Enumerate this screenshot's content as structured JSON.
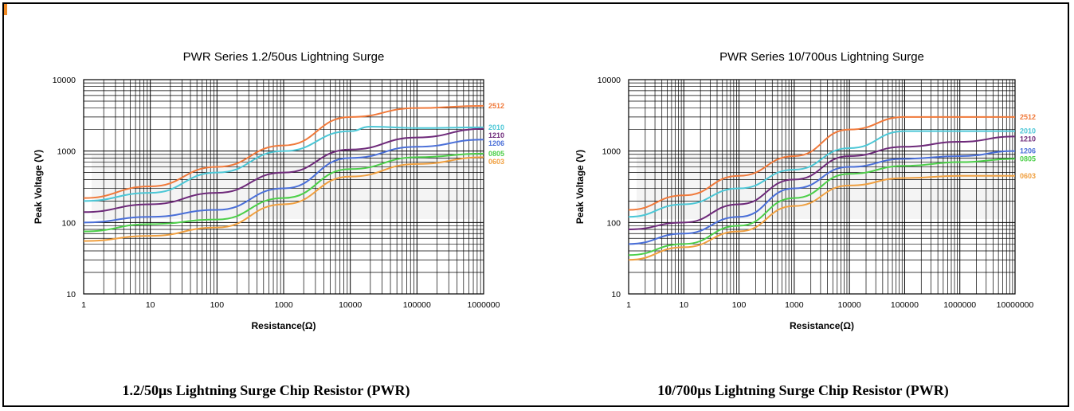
{
  "chart_data": [
    {
      "type": "line",
      "title": "PWR Series 1.2/50us Lightning Surge",
      "xlabel": "Resistance(Ω)",
      "ylabel": "Peak Voltage (V)",
      "xscale": "log",
      "yscale": "log",
      "xlim": [
        1,
        1000000
      ],
      "ylim": [
        10,
        10000
      ],
      "xticks": [
        "1",
        "10",
        "100",
        "1000",
        "10000",
        "100000",
        "1000000"
      ],
      "yticks": [
        "10",
        "100",
        "1000",
        "10000"
      ],
      "grid": true,
      "legend": "series labels at right end of lines",
      "series": [
        {
          "name": "2512",
          "color": "#f0793a",
          "points": [
            [
              1,
              220
            ],
            [
              10,
              320
            ],
            [
              100,
              600
            ],
            [
              1000,
              1200
            ],
            [
              10000,
              3000
            ],
            [
              100000,
              4000
            ],
            [
              1000000,
              4300
            ]
          ]
        },
        {
          "name": "2010",
          "color": "#4cc7d6",
          "points": [
            [
              1,
              200
            ],
            [
              10,
              260
            ],
            [
              100,
              500
            ],
            [
              1000,
              1000
            ],
            [
              10000,
              1900
            ],
            [
              20000,
              2200
            ],
            [
              100000,
              2100
            ],
            [
              1000000,
              2150
            ]
          ]
        },
        {
          "name": "1210",
          "color": "#6e2a7a",
          "points": [
            [
              1,
              140
            ],
            [
              10,
              180
            ],
            [
              100,
              260
            ],
            [
              1000,
              500
            ],
            [
              10000,
              1050
            ],
            [
              100000,
              1550
            ],
            [
              1000000,
              2050
            ]
          ]
        },
        {
          "name": "1206",
          "color": "#4a6fd8",
          "points": [
            [
              1,
              100
            ],
            [
              10,
              120
            ],
            [
              100,
              150
            ],
            [
              1000,
              300
            ],
            [
              10000,
              800
            ],
            [
              100000,
              1150
            ],
            [
              1000000,
              1450
            ]
          ]
        },
        {
          "name": "0805",
          "color": "#4dcf4a",
          "points": [
            [
              1,
              75
            ],
            [
              10,
              95
            ],
            [
              100,
              110
            ],
            [
              1000,
              220
            ],
            [
              10000,
              560
            ],
            [
              100000,
              820
            ],
            [
              1000000,
              920
            ]
          ]
        },
        {
          "name": "0603",
          "color": "#f0a040",
          "points": [
            [
              1,
              55
            ],
            [
              10,
              65
            ],
            [
              100,
              85
            ],
            [
              1000,
              180
            ],
            [
              10000,
              440
            ],
            [
              100000,
              660
            ],
            [
              1000000,
              820
            ]
          ]
        }
      ]
    },
    {
      "type": "line",
      "title": "PWR Series 10/700us Lightning Surge",
      "xlabel": "Resistance(Ω)",
      "ylabel": "Peak Voltage (V)",
      "xscale": "log",
      "yscale": "log",
      "xlim": [
        1,
        10000000
      ],
      "ylim": [
        10,
        10000
      ],
      "xticks": [
        "1",
        "10",
        "100",
        "1000",
        "10000",
        "100000",
        "1000000",
        "10000000"
      ],
      "yticks": [
        "10",
        "100",
        "1000",
        "10000"
      ],
      "grid": true,
      "legend": "series labels at right end of lines",
      "series": [
        {
          "name": "2512",
          "color": "#f0793a",
          "points": [
            [
              1,
              150
            ],
            [
              10,
              240
            ],
            [
              100,
              450
            ],
            [
              1000,
              850
            ],
            [
              10000,
              2000
            ],
            [
              100000,
              3000
            ],
            [
              1000000,
              3000
            ],
            [
              10000000,
              3000
            ]
          ]
        },
        {
          "name": "2010",
          "color": "#4cc7d6",
          "points": [
            [
              1,
              120
            ],
            [
              10,
              180
            ],
            [
              100,
              300
            ],
            [
              1000,
              550
            ],
            [
              10000,
              1100
            ],
            [
              100000,
              1900
            ],
            [
              1000000,
              1900
            ],
            [
              10000000,
              1900
            ]
          ]
        },
        {
          "name": "1210",
          "color": "#6e2a7a",
          "points": [
            [
              1,
              80
            ],
            [
              10,
              100
            ],
            [
              100,
              180
            ],
            [
              1000,
              400
            ],
            [
              10000,
              850
            ],
            [
              100000,
              1150
            ],
            [
              1000000,
              1350
            ],
            [
              10000000,
              1600
            ]
          ]
        },
        {
          "name": "1206",
          "color": "#4a6fd8",
          "points": [
            [
              1,
              50
            ],
            [
              10,
              70
            ],
            [
              100,
              120
            ],
            [
              1000,
              300
            ],
            [
              10000,
              600
            ],
            [
              100000,
              780
            ],
            [
              1000000,
              850
            ],
            [
              10000000,
              1000
            ]
          ]
        },
        {
          "name": "0805",
          "color": "#4dcf4a",
          "points": [
            [
              1,
              35
            ],
            [
              10,
              50
            ],
            [
              100,
              90
            ],
            [
              1000,
              220
            ],
            [
              10000,
              480
            ],
            [
              100000,
              620
            ],
            [
              1000000,
              700
            ],
            [
              10000000,
              780
            ]
          ]
        },
        {
          "name": "0603",
          "color": "#f0a040",
          "points": [
            [
              1,
              30
            ],
            [
              10,
              45
            ],
            [
              100,
              75
            ],
            [
              1000,
              170
            ],
            [
              10000,
              330
            ],
            [
              100000,
              420
            ],
            [
              1000000,
              450
            ],
            [
              10000000,
              450
            ]
          ]
        }
      ]
    }
  ],
  "captions": [
    "1.2/50μs Lightning Surge Chip Resistor (PWR)",
    "10/700μs Lightning Surge Chip Resistor (PWR)"
  ]
}
